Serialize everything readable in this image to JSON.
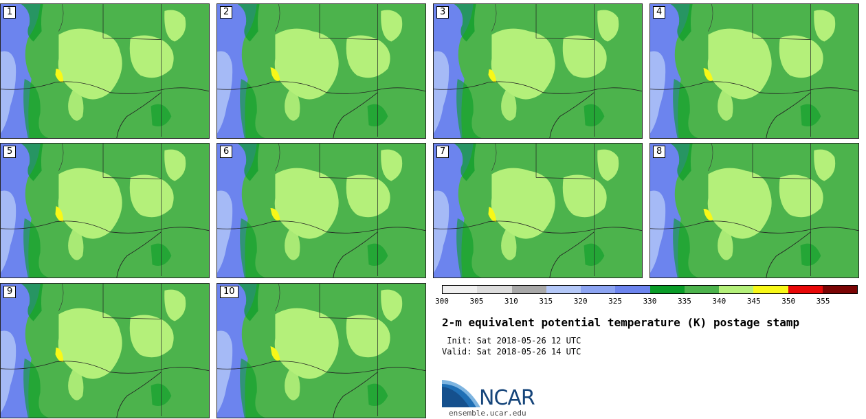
{
  "panels": [
    {
      "label": "1"
    },
    {
      "label": "2"
    },
    {
      "label": "3"
    },
    {
      "label": "4"
    },
    {
      "label": "5"
    },
    {
      "label": "6"
    },
    {
      "label": "7"
    },
    {
      "label": "8"
    },
    {
      "label": "9"
    },
    {
      "label": "10"
    }
  ],
  "colorbar": {
    "colors": [
      "#f0f0f0",
      "#dcdcdc",
      "#a8a8a8",
      "#b4c8f8",
      "#8ca4f2",
      "#6c84ee",
      "#0a9c28",
      "#4cb34c",
      "#b4f07a",
      "#f8f818",
      "#e80808",
      "#7a0404"
    ],
    "labels": [
      "300",
      "305",
      "310",
      "315",
      "320",
      "325",
      "330",
      "335",
      "340",
      "345",
      "350",
      "355"
    ]
  },
  "title": "2-m equivalent potential temperature (K) postage stamp",
  "init": " Init: Sat 2018-05-26 12 UTC",
  "valid": "Valid: Sat 2018-05-26 14 UTC",
  "logo": {
    "text": "NCAR",
    "url": "ensemble.ucar.edu"
  },
  "colors": {
    "blue_dark": "#6c84ee",
    "blue_light": "#b4c8f8",
    "green_dark": "#0a9c28",
    "green": "#4cb34c",
    "green_light": "#b4f07a",
    "yellow": "#f8f818"
  }
}
